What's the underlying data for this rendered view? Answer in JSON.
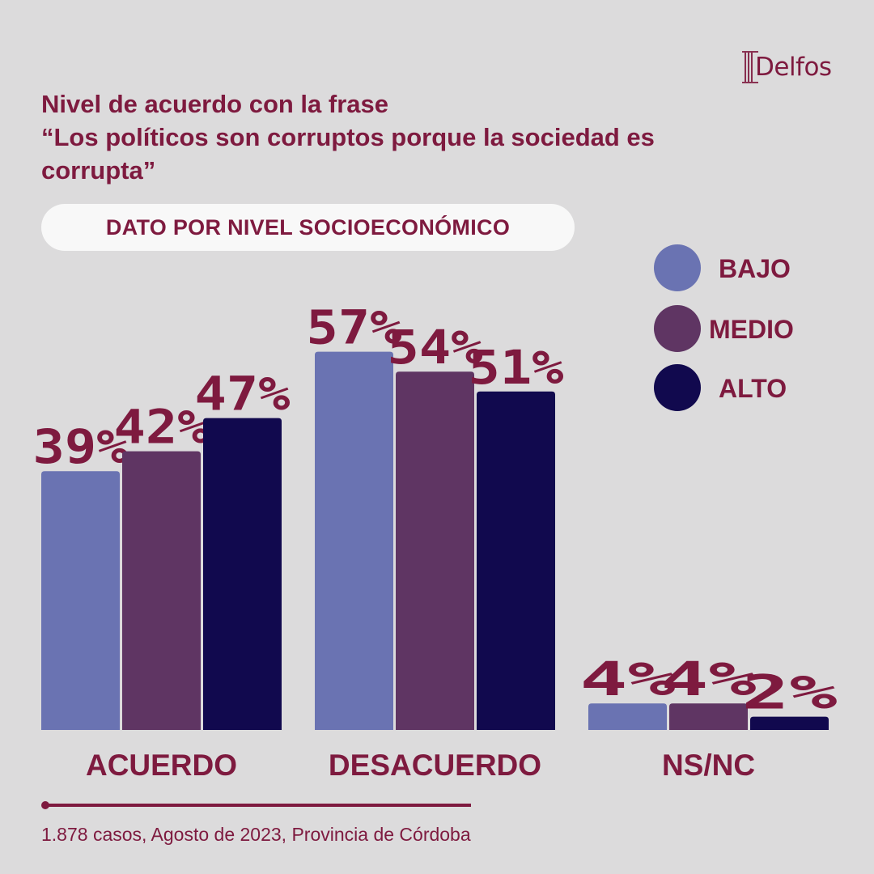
{
  "brand": {
    "name": "Delfos",
    "color": "#7e1a3f"
  },
  "chart_data": {
    "type": "bar",
    "title_lines": [
      "Nivel de acuerdo con la frase",
      "“Los políticos son corruptos porque la sociedad es",
      "corrupta”"
    ],
    "subtitle": "DATO POR NIVEL SOCIOECONÓMICO",
    "categories": [
      "ACUERDO",
      "DESACUERDO",
      "NS/NC"
    ],
    "series": [
      {
        "name": "BAJO",
        "color": "#6a73b2",
        "values": [
          39,
          57,
          4
        ]
      },
      {
        "name": "MEDIO",
        "color": "#5f3563",
        "values": [
          42,
          54,
          4
        ]
      },
      {
        "name": "ALTO",
        "color": "#11094e",
        "values": [
          47,
          51,
          2
        ]
      }
    ],
    "value_suffix": "%",
    "ylim": [
      0,
      100
    ],
    "legend_position": "top-right",
    "grid": false
  },
  "footer": {
    "note": "1.878 casos, Agosto de 2023, Provincia de Córdoba"
  }
}
